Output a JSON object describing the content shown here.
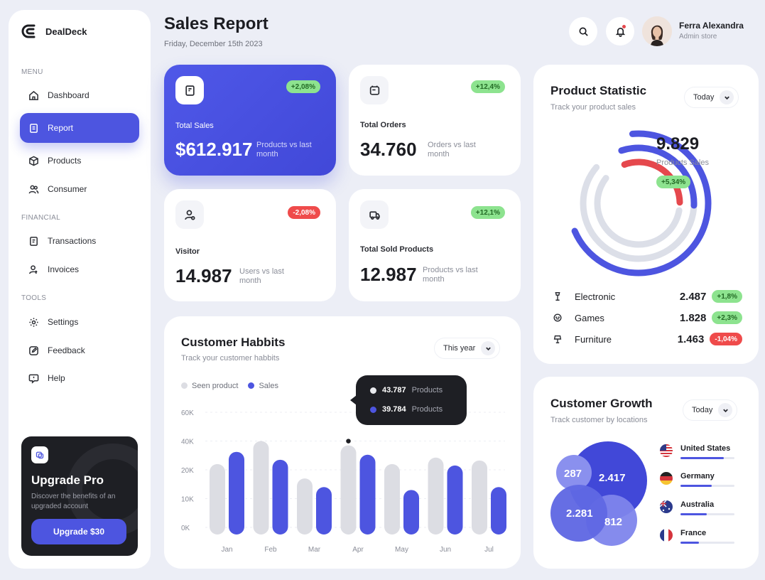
{
  "app": {
    "name": "DealDeck"
  },
  "sidebar": {
    "sections": [
      {
        "title": "MENU"
      },
      {
        "title": "FINANCIAL"
      },
      {
        "title": "TOOLS"
      }
    ],
    "items": [
      {
        "label": "Dashboard",
        "icon": "home-icon"
      },
      {
        "label": "Report",
        "icon": "report-icon",
        "active": true
      },
      {
        "label": "Products",
        "icon": "box-icon"
      },
      {
        "label": "Consumer",
        "icon": "users-icon"
      },
      {
        "label": "Transactions",
        "icon": "receipt-icon"
      },
      {
        "label": "Invoices",
        "icon": "invoice-icon"
      },
      {
        "label": "Settings",
        "icon": "gear-icon"
      },
      {
        "label": "Feedback",
        "icon": "edit-icon"
      },
      {
        "label": "Help",
        "icon": "help-icon"
      }
    ],
    "upgrade": {
      "title": "Upgrade Pro",
      "description": "Discover the benefits of an upgraded account",
      "button": "Upgrade $30"
    }
  },
  "header": {
    "title": "Sales Report",
    "date": "Friday, December 15th 2023",
    "user": {
      "name": "Ferra Alexandra",
      "role": "Admin store"
    }
  },
  "kpis": [
    {
      "label": "Total Sales",
      "value": "$612.917",
      "note": "Products vs last month",
      "change": "+2,08%",
      "trend": "up"
    },
    {
      "label": "Total Orders",
      "value": "34.760",
      "note": "Orders vs last month",
      "change": "+12,4%",
      "trend": "up"
    },
    {
      "label": "Visitor",
      "value": "14.987",
      "note": "Users vs last month",
      "change": "-2,08%",
      "trend": "down"
    },
    {
      "label": "Total Sold Products",
      "value": "12.987",
      "note": "Products vs last month",
      "change": "+12,1%",
      "trend": "up"
    }
  ],
  "product_statistic": {
    "title": "Product Statistic",
    "subtitle": "Track your product sales",
    "filter": "Today",
    "total": "9.829",
    "total_label": "Products Sales",
    "change": "+5,34%",
    "rows": [
      {
        "name": "Electronic",
        "value": "2.487",
        "change": "+1,8%",
        "trend": "up",
        "icon": "cpu-icon"
      },
      {
        "name": "Games",
        "value": "1.828",
        "change": "+2,3%",
        "trend": "up",
        "icon": "gamepad-icon"
      },
      {
        "name": "Furniture",
        "value": "1.463",
        "change": "-1,04%",
        "trend": "down",
        "icon": "lamp-icon"
      }
    ],
    "colors": {
      "accent": "#4d55e0",
      "red": "#e5484d",
      "track": "#dcdfe8"
    }
  },
  "customer_habits": {
    "title": "Customer Habbits",
    "subtitle": "Track your customer habbits",
    "filter": "This year",
    "tooltip": [
      {
        "value": "43.787",
        "unit": "Products"
      },
      {
        "value": "39.784",
        "unit": "Products"
      }
    ]
  },
  "chart_data": {
    "type": "bar",
    "categories": [
      "Jan",
      "Feb",
      "Mar",
      "Apr",
      "May",
      "Jun",
      "Jul"
    ],
    "series": [
      {
        "name": "Seen product",
        "values": [
          24000,
          40000,
          17000,
          37000,
          24000,
          28500,
          26500
        ],
        "color": "#dcdde3"
      },
      {
        "name": "Sales",
        "values": [
          32500,
          27000,
          14000,
          30500,
          13000,
          23000,
          14000
        ],
        "color": "#4d55e0"
      }
    ],
    "yticks": [
      "60K",
      "40K",
      "20K",
      "10K",
      "0K"
    ],
    "ylim": [
      0,
      60000
    ],
    "grid": true,
    "legend": "top-left"
  },
  "customer_growth": {
    "title": "Customer Growth",
    "subtitle": "Track customer by locations",
    "filter": "Today",
    "bubbles": [
      "2.417",
      "287",
      "2.281",
      "812"
    ],
    "countries": [
      {
        "name": "United States",
        "share": 0.8
      },
      {
        "name": "Germany",
        "share": 0.58
      },
      {
        "name": "Australia",
        "share": 0.49
      },
      {
        "name": "France",
        "share": 0.34
      }
    ]
  }
}
